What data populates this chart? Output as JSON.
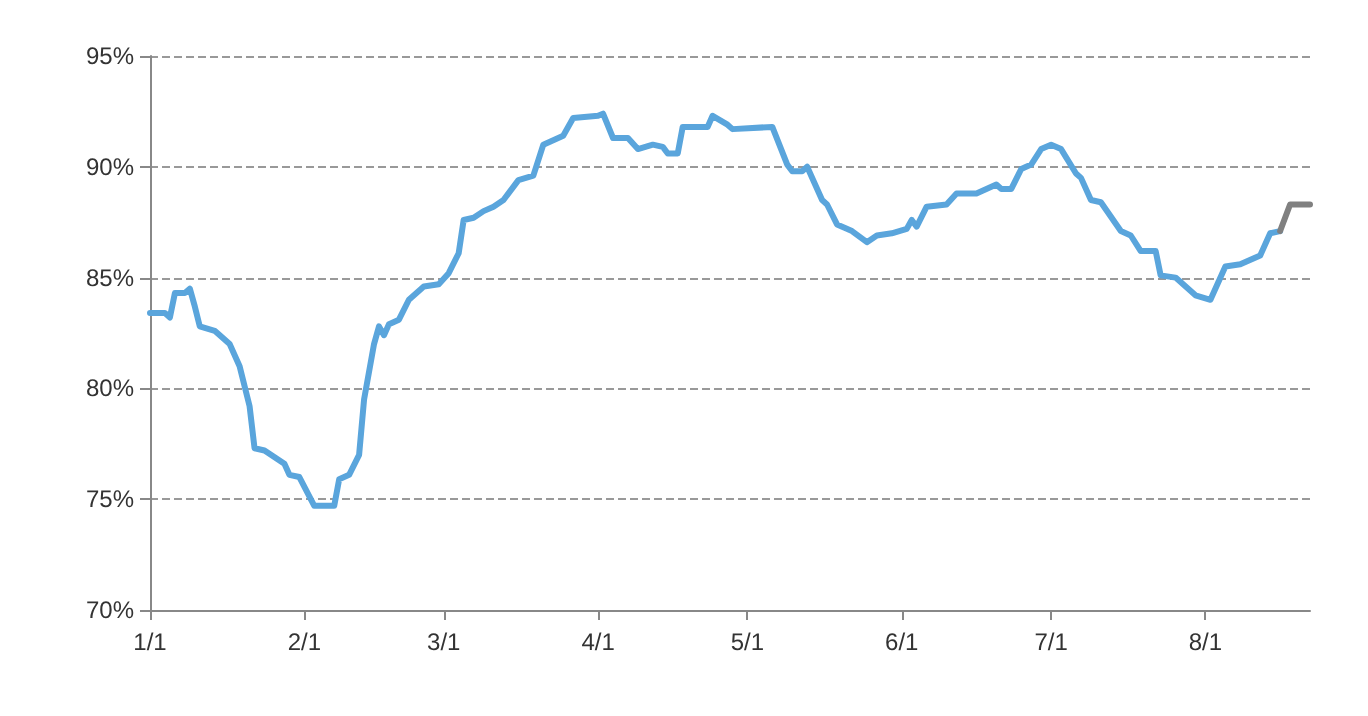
{
  "chart_data": {
    "type": "line",
    "x": [
      "--01-01",
      "--01-04",
      "--01-05",
      "--01-06",
      "--01-08",
      "--01-09",
      "--01-10",
      "--01-11",
      "--01-14",
      "--01-17",
      "--01-19",
      "--01-21",
      "--01-22",
      "--01-24",
      "--01-28",
      "--01-29",
      "--01-31",
      "--02-03",
      "--02-07",
      "--02-08",
      "--02-10",
      "--02-12",
      "--02-13",
      "--02-15",
      "--02-16",
      "--02-17",
      "--02-18",
      "--02-20",
      "--02-22",
      "--02-25",
      "--02-28",
      "--03-02",
      "--03-04",
      "--03-05",
      "--03-07",
      "--03-09",
      "--03-11",
      "--03-13",
      "--03-16",
      "--03-19",
      "--03-21",
      "--03-25",
      "--03-27",
      "--04-01",
      "--04-02",
      "--04-04",
      "--04-07",
      "--04-09",
      "--04-12",
      "--04-14",
      "--04-15",
      "--04-17",
      "--04-18",
      "--04-23",
      "--04-24",
      "--04-27",
      "--04-28",
      "--05-06",
      "--05-09",
      "--05-10",
      "--05-12",
      "--05-13",
      "--05-16",
      "--05-17",
      "--05-19",
      "--05-22",
      "--05-25",
      "--05-27",
      "--05-30",
      "--06-02",
      "--06-03",
      "--06-04",
      "--06-06",
      "--06-10",
      "--06-12",
      "--06-16",
      "--06-20",
      "--06-21",
      "--06-23",
      "--06-25",
      "--06-27",
      "--06-29",
      "--07-01",
      "--07-03",
      "--07-06",
      "--07-07",
      "--07-09",
      "--07-11",
      "--07-15",
      "--07-17",
      "--07-19",
      "--07-22",
      "--07-23",
      "--07-26",
      "--07-30",
      "--08-02",
      "--08-05",
      "--08-08",
      "--08-12",
      "--08-14",
      "--08-16"
    ],
    "series": [
      {
        "color": "#5aa5dc",
        "values": [
          83.4,
          83.4,
          83.2,
          84.3,
          84.3,
          84.5,
          83.7,
          82.8,
          82.6,
          82.0,
          81.0,
          79.2,
          77.3,
          77.2,
          76.6,
          76.1,
          76.0,
          74.7,
          74.7,
          75.9,
          76.1,
          77.0,
          79.5,
          82.0,
          82.8,
          82.4,
          82.9,
          83.1,
          84.0,
          84.6,
          84.7,
          85.2,
          86.1,
          87.6,
          87.7,
          88.0,
          88.2,
          88.5,
          89.4,
          89.6,
          91.0,
          91.4,
          92.2,
          92.3,
          92.4,
          91.3,
          91.3,
          90.8,
          91.0,
          90.9,
          90.6,
          90.6,
          91.8,
          91.8,
          92.3,
          91.9,
          91.7,
          91.8,
          90.1,
          89.8,
          89.8,
          90.0,
          88.5,
          88.3,
          87.4,
          87.1,
          86.6,
          86.9,
          87.0,
          87.2,
          87.6,
          87.3,
          88.2,
          88.3,
          88.8,
          88.8,
          89.2,
          89.0,
          89.0,
          89.9,
          90.1,
          90.8,
          91.0,
          90.8,
          89.7,
          89.5,
          88.5,
          88.4,
          87.1,
          86.9,
          86.2,
          86.2,
          85.1,
          85.0,
          84.2,
          84.0,
          85.5,
          85.6,
          86.0,
          87.0,
          87.1
        ]
      },
      {
        "color": "#808080",
        "x": [
          "--08-16",
          "--08-18",
          "--08-22"
        ],
        "values": [
          87.1,
          88.3,
          88.3
        ]
      }
    ],
    "xlim": [
      "--01-01",
      "--08-22"
    ],
    "xticks": [
      {
        "value": "--01-01",
        "label": "1/1"
      },
      {
        "value": "--02-01",
        "label": "2/1"
      },
      {
        "value": "--03-01",
        "label": "3/1"
      },
      {
        "value": "--04-01",
        "label": "4/1"
      },
      {
        "value": "--05-01",
        "label": "5/1"
      },
      {
        "value": "--06-01",
        "label": "6/1"
      },
      {
        "value": "--07-01",
        "label": "7/1"
      },
      {
        "value": "--08-01",
        "label": "8/1"
      }
    ],
    "ylim": [
      70,
      95
    ],
    "yticks": [
      {
        "value": 70,
        "label": "70%"
      },
      {
        "value": 75,
        "label": "75%"
      },
      {
        "value": 80,
        "label": "80%"
      },
      {
        "value": 85,
        "label": "85%"
      },
      {
        "value": 90,
        "label": "90%"
      },
      {
        "value": 95,
        "label": "95%"
      }
    ],
    "grid": "y",
    "marker": "none",
    "line_style": "solid"
  }
}
